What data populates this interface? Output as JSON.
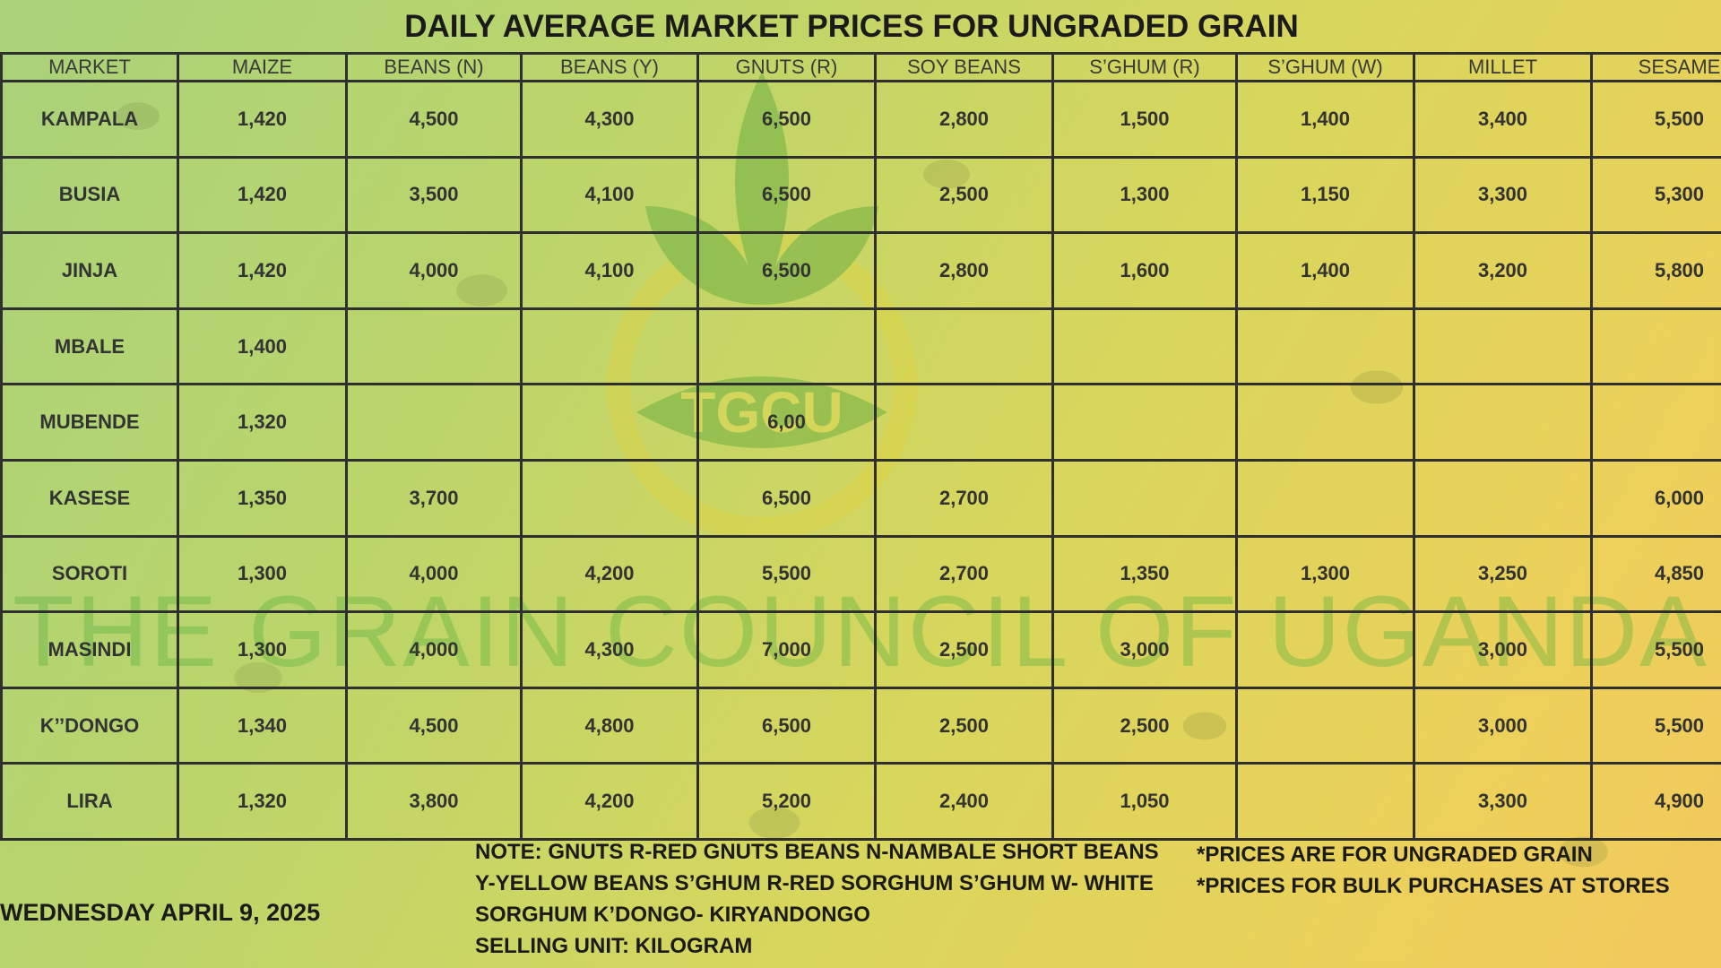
{
  "title": "DAILY AVERAGE MARKET PRICES FOR UNGRADED GRAIN",
  "watermark": {
    "logo_text": "TGCU",
    "text": "THE GRAIN COUNCIL OF UGANDA"
  },
  "table": {
    "headers": [
      "MARKET",
      "MAIZE",
      "BEANS (N)",
      "BEANS (Y)",
      "GNUTS (R)",
      "SOY BEANS",
      "S’GHUM (R)",
      "S’GHUM (W)",
      "MILLET",
      "SESAME"
    ],
    "rows": [
      [
        "KAMPALA",
        "1,420",
        "4,500",
        "4,300",
        "6,500",
        "2,800",
        "1,500",
        "1,400",
        "3,400",
        "5,500"
      ],
      [
        "BUSIA",
        "1,420",
        "3,500",
        "4,100",
        "6,500",
        "2,500",
        "1,300",
        "1,150",
        "3,300",
        "5,300"
      ],
      [
        "JINJA",
        "1,420",
        "4,000",
        "4,100",
        "6,500",
        "2,800",
        "1,600",
        "1,400",
        "3,200",
        "5,800"
      ],
      [
        "MBALE",
        "1,400",
        "",
        "",
        "",
        "",
        "",
        "",
        "",
        ""
      ],
      [
        "MUBENDE",
        "1,320",
        "",
        "",
        "6,00",
        "",
        "",
        "",
        "",
        ""
      ],
      [
        "KASESE",
        "1,350",
        "3,700",
        "",
        "6,500",
        "2,700",
        "",
        "",
        "",
        "6,000"
      ],
      [
        "SOROTI",
        "1,300",
        "4,000",
        "4,200",
        "5,500",
        "2,700",
        "1,350",
        "1,300",
        "3,250",
        "4,850"
      ],
      [
        "MASINDI",
        "1,300",
        "4,000",
        "4,300",
        "7,000",
        "2,500",
        "3,000",
        "",
        "3,000",
        "5,500"
      ],
      [
        "K’’DONGO",
        "1,340",
        "4,500",
        "4,800",
        "6,500",
        "2,500",
        "2,500",
        "",
        "3,000",
        "5,500"
      ],
      [
        "LIRA",
        "1,320",
        "3,800",
        "4,200",
        "5,200",
        "2,400",
        "1,050",
        "",
        "3,300",
        "4,900"
      ]
    ]
  },
  "footer": {
    "date": "WEDNESDAY APRIL 9, 2025",
    "notes": [
      "NOTE: GNUTS R-RED GNUTS  BEANS N-NAMBALE SHORT BEANS",
      "Y-YELLOW BEANS  S’GHUM R-RED SORGHUM  S’GHUM W- WHITE",
      "SORGHUM K’DONGO- KIRYANDONGO",
      "SELLING UNIT: KILOGRAM"
    ],
    "disclaimers": [
      "*PRICES ARE FOR UNGRADED GRAIN",
      "*PRICES FOR BULK PURCHASES AT STORES"
    ]
  },
  "colors": {
    "border": "#2f2f2f",
    "watermark_green": "#4fae3a",
    "background_start": "#a9d27a",
    "background_end": "#f2c95c"
  }
}
